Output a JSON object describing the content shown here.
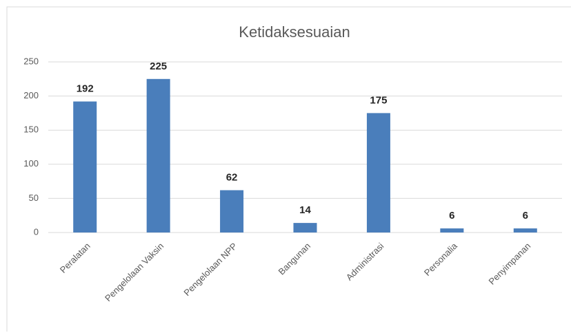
{
  "chart_data": {
    "type": "bar",
    "title": "Ketidaksesuaian",
    "categories": [
      "Peralatan",
      "Pengelolaan Vaksin",
      "Pengelolaan NPP",
      "Bangunan",
      "Administrasi",
      "Personalia",
      "Penyimpanan"
    ],
    "values": [
      192,
      225,
      62,
      14,
      175,
      6,
      6
    ],
    "color": "#4a7ebb",
    "ylim": [
      0,
      250
    ],
    "yticks": [
      0,
      50,
      100,
      150,
      200,
      250
    ],
    "grid": true
  }
}
